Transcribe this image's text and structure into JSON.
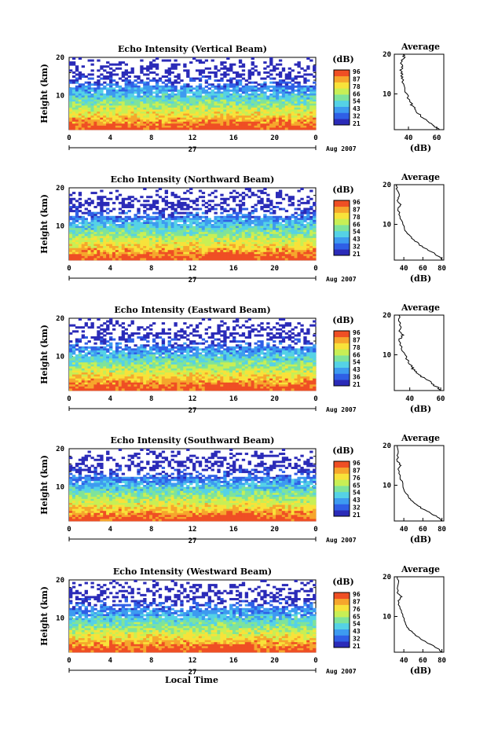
{
  "chart_data": [
    {
      "type": "heatmap",
      "title": "Echo Intensity (Vertical Beam)",
      "ylabel": "Height (km)",
      "yticks": [
        "20",
        "10"
      ],
      "xticks": [
        "0",
        "4",
        "8",
        "12",
        "16",
        "20",
        "0"
      ],
      "date_label": "27",
      "date_suffix": "Aug 2007",
      "xlim": [
        0,
        24
      ],
      "ylim": [
        1,
        20
      ],
      "colorbar_unit": "(dB)",
      "colorbar_ticks": [
        "96",
        "87",
        "78",
        "66",
        "54",
        "43",
        "32",
        "21"
      ],
      "profile_title": "Average",
      "profile_xlabel": "(dB)",
      "profile_xticks": [
        "40",
        "60"
      ],
      "profile_yticks": [
        "20",
        "10"
      ],
      "profile_xlim": [
        30,
        65
      ],
      "profile": [
        [
          62,
          1
        ],
        [
          58,
          2
        ],
        [
          54,
          3
        ],
        [
          50,
          4
        ],
        [
          47,
          5
        ],
        [
          45,
          6
        ],
        [
          43,
          7
        ],
        [
          41,
          8
        ],
        [
          39,
          10
        ],
        [
          37,
          12
        ],
        [
          35,
          14
        ],
        [
          36,
          15
        ],
        [
          34,
          16
        ],
        [
          36,
          17
        ],
        [
          35,
          18
        ],
        [
          37,
          19
        ],
        [
          36,
          20
        ]
      ]
    },
    {
      "type": "heatmap",
      "title": "Echo Intensity (Northward Beam)",
      "ylabel": "Height (km)",
      "yticks": [
        "20",
        "10"
      ],
      "xticks": [
        "0",
        "4",
        "8",
        "12",
        "16",
        "20",
        "0"
      ],
      "date_label": "27",
      "date_suffix": "Aug 2007",
      "xlim": [
        0,
        24
      ],
      "ylim": [
        1,
        20
      ],
      "colorbar_unit": "(dB)",
      "colorbar_ticks": [
        "96",
        "87",
        "78",
        "66",
        "54",
        "43",
        "32",
        "21"
      ],
      "profile_title": "Average",
      "profile_xlabel": "(dB)",
      "profile_xticks": [
        "40",
        "60",
        "80"
      ],
      "profile_yticks": [
        "20",
        "10"
      ],
      "profile_xlim": [
        30,
        82
      ],
      "profile": [
        [
          80,
          1
        ],
        [
          76,
          2
        ],
        [
          70,
          3
        ],
        [
          62,
          4
        ],
        [
          56,
          5
        ],
        [
          51,
          6
        ],
        [
          47,
          7
        ],
        [
          43,
          8
        ],
        [
          39,
          10
        ],
        [
          36,
          12
        ],
        [
          34,
          14
        ],
        [
          37,
          15
        ],
        [
          33,
          16
        ],
        [
          35,
          17
        ],
        [
          32,
          19
        ],
        [
          33,
          20
        ]
      ]
    },
    {
      "type": "heatmap",
      "title": "Echo Intensity (Eastward Beam)",
      "ylabel": "Height (km)",
      "yticks": [
        "20",
        "10"
      ],
      "xticks": [
        "0",
        "4",
        "8",
        "12",
        "16",
        "20",
        "0"
      ],
      "date_label": "27",
      "date_suffix": "Aug 2007",
      "xlim": [
        0,
        24
      ],
      "ylim": [
        1,
        20
      ],
      "colorbar_unit": "(dB)",
      "colorbar_ticks": [
        "96",
        "87",
        "78",
        "66",
        "54",
        "43",
        "36",
        "21"
      ],
      "profile_title": "Average",
      "profile_xlabel": "(dB)",
      "profile_xticks": [
        "40",
        "60"
      ],
      "profile_yticks": [
        "20",
        "10"
      ],
      "profile_xlim": [
        30,
        62
      ],
      "profile": [
        [
          60,
          1
        ],
        [
          57,
          2
        ],
        [
          54,
          3
        ],
        [
          50,
          4
        ],
        [
          46,
          5
        ],
        [
          43,
          6
        ],
        [
          41,
          7
        ],
        [
          39,
          8
        ],
        [
          37,
          10
        ],
        [
          35,
          12
        ],
        [
          33,
          14
        ],
        [
          36,
          15
        ],
        [
          33,
          16
        ],
        [
          34,
          18
        ],
        [
          33,
          20
        ]
      ]
    },
    {
      "type": "heatmap",
      "title": "Echo Intensity (Southward Beam)",
      "ylabel": "Height (km)",
      "yticks": [
        "20",
        "10"
      ],
      "xticks": [
        "0",
        "4",
        "8",
        "12",
        "16",
        "20",
        "0"
      ],
      "date_label": "27",
      "date_suffix": "Aug 2007",
      "xlim": [
        0,
        24
      ],
      "ylim": [
        1,
        20
      ],
      "colorbar_unit": "(dB)",
      "colorbar_ticks": [
        "96",
        "87",
        "76",
        "65",
        "54",
        "43",
        "32",
        "21"
      ],
      "profile_title": "Average",
      "profile_xlabel": "(dB)",
      "profile_xticks": [
        "40",
        "60",
        "80"
      ],
      "profile_yticks": [
        "20",
        "10"
      ],
      "profile_xlim": [
        30,
        82
      ],
      "profile": [
        [
          80,
          1
        ],
        [
          75,
          2
        ],
        [
          68,
          3
        ],
        [
          60,
          4
        ],
        [
          54,
          5
        ],
        [
          49,
          6
        ],
        [
          45,
          7
        ],
        [
          42,
          8
        ],
        [
          39,
          10
        ],
        [
          36,
          12
        ],
        [
          34,
          14
        ],
        [
          37,
          15
        ],
        [
          33,
          16
        ],
        [
          34,
          18
        ],
        [
          33,
          20
        ]
      ]
    },
    {
      "type": "heatmap",
      "title": "Echo Intensity (Westward Beam)",
      "ylabel": "Height (km)",
      "yticks": [
        "20",
        "10"
      ],
      "xticks": [
        "0",
        "4",
        "8",
        "12",
        "16",
        "20",
        "0"
      ],
      "date_label": "27",
      "date_suffix": "Aug 2007",
      "xlabel": "Local Time",
      "xlim": [
        0,
        24
      ],
      "ylim": [
        1,
        20
      ],
      "colorbar_unit": "(dB)",
      "colorbar_ticks": [
        "96",
        "87",
        "76",
        "65",
        "54",
        "43",
        "32",
        "21"
      ],
      "profile_title": "Average",
      "profile_xlabel": "(dB)",
      "profile_xticks": [
        "40",
        "60",
        "80"
      ],
      "profile_yticks": [
        "20",
        "10"
      ],
      "profile_xlim": [
        30,
        82
      ],
      "profile": [
        [
          80,
          1
        ],
        [
          75,
          2
        ],
        [
          68,
          3
        ],
        [
          60,
          4
        ],
        [
          54,
          5
        ],
        [
          49,
          6
        ],
        [
          45,
          7
        ],
        [
          42,
          8
        ],
        [
          39,
          10
        ],
        [
          36,
          12
        ],
        [
          34,
          14
        ],
        [
          38,
          15
        ],
        [
          33,
          16
        ],
        [
          34,
          18
        ],
        [
          33,
          20
        ]
      ]
    }
  ],
  "colors": {
    "scale": [
      "#2b2bb8",
      "#2f5fe6",
      "#3d9bf0",
      "#55d2e6",
      "#7fe39a",
      "#c8ef55",
      "#f8e23a",
      "#f6a62c",
      "#ef4f24"
    ]
  }
}
